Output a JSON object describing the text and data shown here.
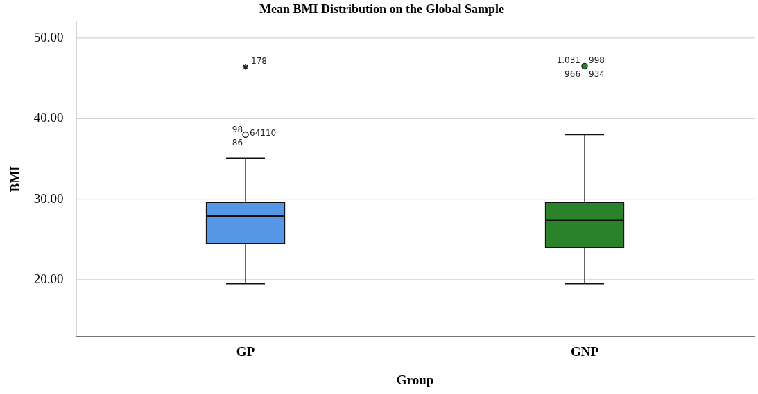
{
  "chart_data": {
    "type": "box",
    "title": "Mean BMI Distribution on the Global Sample",
    "xlabel": "Group",
    "ylabel": "BMI",
    "categories": [
      "GP",
      "GNP"
    ],
    "colors": [
      "#5596e6",
      "#2a832a"
    ],
    "boxes": [
      {
        "low": 19.5,
        "q1": 24.5,
        "median": 27.9,
        "q3": 29.6,
        "high": 35.1
      },
      {
        "low": 19.5,
        "q1": 24.0,
        "median": 27.4,
        "q3": 29.6,
        "high": 38.0
      }
    ],
    "series": [
      {
        "type": "scatter",
        "x": [
          "GP"
        ],
        "values": [
          46.4
        ],
        "marker": "cross",
        "color": "#222222"
      },
      {
        "type": "scatter",
        "x": [
          "GP"
        ],
        "values": [
          38.0
        ],
        "marker": "circle",
        "color": "#ffffff"
      },
      {
        "type": "scatter",
        "x": [
          "GNP"
        ],
        "values": [
          46.5
        ],
        "marker": "circle",
        "color": "#2a832a"
      }
    ],
    "ylim": [
      13,
      52
    ],
    "yticks": [
      {
        "value": 20,
        "label": "20.00"
      },
      {
        "value": 30,
        "label": "30.00"
      },
      {
        "value": 40,
        "label": "40.00"
      },
      {
        "value": 50,
        "label": "50.00"
      }
    ],
    "grid": "y",
    "annotations": [
      {
        "text": "178",
        "x": "GP",
        "y": 46.4
      },
      {
        "text": "98",
        "x": "GP",
        "y": 38.0
      },
      {
        "text": "64110",
        "x": "GP",
        "y": 38.0
      },
      {
        "text": "86",
        "x": "GP",
        "y": 38.0
      },
      {
        "text": "1.031",
        "x": "GNP",
        "y": 46.5
      },
      {
        "text": "998",
        "x": "GNP",
        "y": 46.5
      },
      {
        "text": "966",
        "x": "GNP",
        "y": 46.5
      },
      {
        "text": "934",
        "x": "GNP",
        "y": 46.5
      }
    ]
  }
}
